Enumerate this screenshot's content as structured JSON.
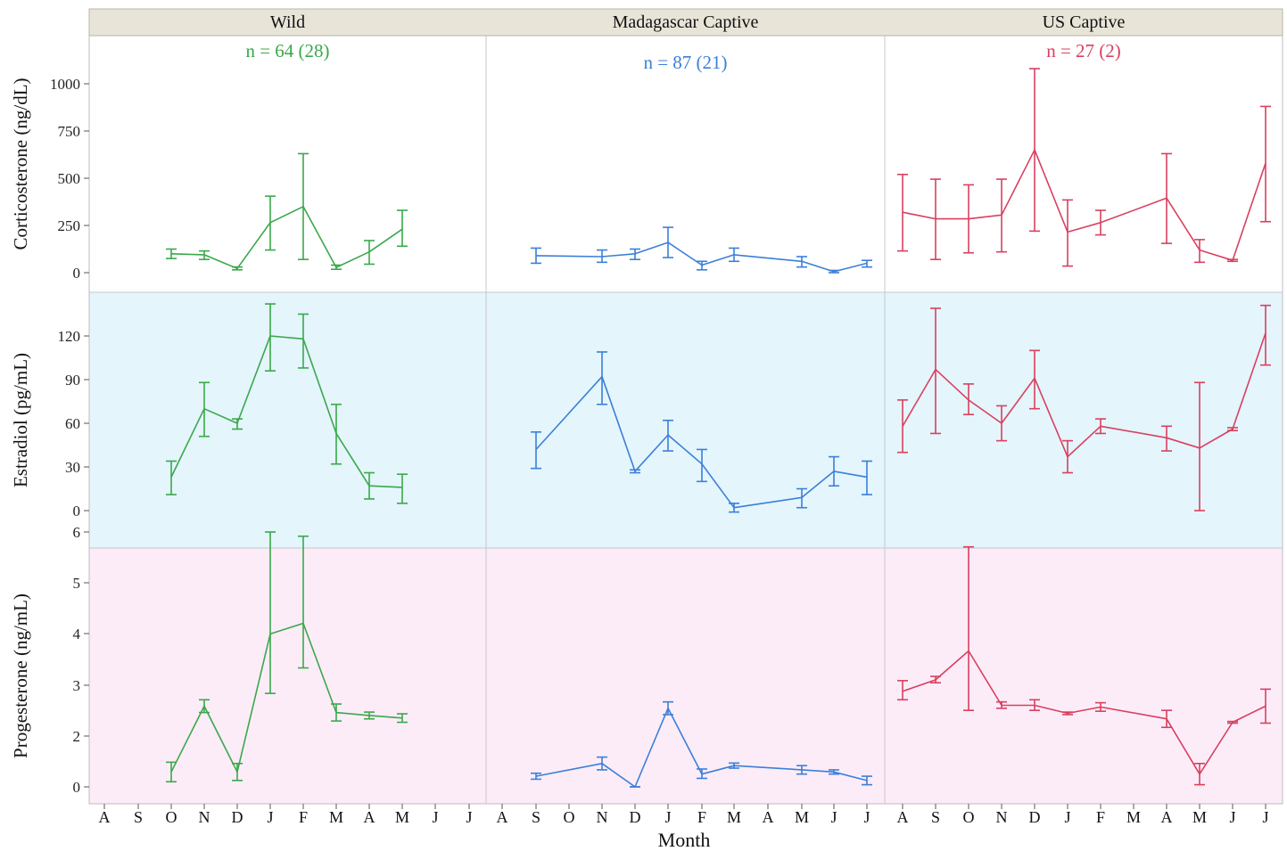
{
  "chart_data": {
    "type": "line",
    "error_bars": true,
    "grid": false,
    "columns": [
      {
        "key": "wild",
        "title": "Wild",
        "n_label": "n = 64 (28)",
        "color": "#3aa84a"
      },
      {
        "key": "mad",
        "title": "Madagascar Captive",
        "n_label": "n = 87 (21)",
        "color": "#3b7fd8"
      },
      {
        "key": "us",
        "title": "US Captive",
        "n_label": "n = 27 (2)",
        "color": "#d9405f"
      }
    ],
    "months": [
      "A",
      "S",
      "O",
      "N",
      "D",
      "J",
      "F",
      "M",
      "A",
      "M",
      "J",
      "J"
    ],
    "xlabel": "Month",
    "rows": [
      {
        "key": "cort",
        "ylabel": "Corticosterone (ng/dL)",
        "ylim": [
          -50,
          1230
        ],
        "ticks": [
          0,
          250,
          500,
          750,
          1000
        ],
        "bg": "#ffffff",
        "series": {
          "wild": [
            {
              "m": 2,
              "y": 100,
              "lo": 75,
              "hi": 125
            },
            {
              "m": 3,
              "y": 95,
              "lo": 70,
              "hi": 115
            },
            {
              "m": 4,
              "y": 22,
              "lo": 15,
              "hi": 30
            },
            {
              "m": 5,
              "y": 265,
              "lo": 120,
              "hi": 405
            },
            {
              "m": 6,
              "y": 350,
              "lo": 70,
              "hi": 630
            },
            {
              "m": 7,
              "y": 28,
              "lo": 18,
              "hi": 40
            },
            {
              "m": 8,
              "y": 110,
              "lo": 45,
              "hi": 170
            },
            {
              "m": 9,
              "y": 230,
              "lo": 140,
              "hi": 330
            }
          ],
          "mad": [
            {
              "m": 1,
              "y": 90,
              "lo": 50,
              "hi": 130
            },
            {
              "m": 3,
              "y": 85,
              "lo": 55,
              "hi": 120
            },
            {
              "m": 4,
              "y": 100,
              "lo": 70,
              "hi": 125
            },
            {
              "m": 5,
              "y": 160,
              "lo": 80,
              "hi": 240
            },
            {
              "m": 6,
              "y": 40,
              "lo": 15,
              "hi": 60
            },
            {
              "m": 7,
              "y": 95,
              "lo": 60,
              "hi": 130
            },
            {
              "m": 9,
              "y": 60,
              "lo": 30,
              "hi": 85
            },
            {
              "m": 10,
              "y": 5,
              "lo": 0,
              "hi": 12
            },
            {
              "m": 11,
              "y": 50,
              "lo": 30,
              "hi": 65
            }
          ],
          "us": [
            {
              "m": 0,
              "y": 320,
              "lo": 115,
              "hi": 520
            },
            {
              "m": 1,
              "y": 285,
              "lo": 70,
              "hi": 495
            },
            {
              "m": 2,
              "y": 285,
              "lo": 105,
              "hi": 465
            },
            {
              "m": 3,
              "y": 305,
              "lo": 110,
              "hi": 495
            },
            {
              "m": 4,
              "y": 650,
              "lo": 220,
              "hi": 1080
            },
            {
              "m": 5,
              "y": 215,
              "lo": 35,
              "hi": 385
            },
            {
              "m": 6,
              "y": 265,
              "lo": 200,
              "hi": 330
            },
            {
              "m": 8,
              "y": 395,
              "lo": 155,
              "hi": 630
            },
            {
              "m": 9,
              "y": 120,
              "lo": 55,
              "hi": 175
            },
            {
              "m": 10,
              "y": 65,
              "lo": 60,
              "hi": 70
            },
            {
              "m": 11,
              "y": 580,
              "lo": 270,
              "hi": 880
            }
          ]
        }
      },
      {
        "key": "estr",
        "ylabel": "Estradiol (pg/mL)",
        "ylim": [
          -25,
          142
        ],
        "ticks": [
          0,
          30,
          60,
          90,
          120
        ],
        "bg": "#e4f5fc",
        "series": {
          "wild": [
            {
              "m": 2,
              "y": 23,
              "lo": 11,
              "hi": 34
            },
            {
              "m": 3,
              "y": 70,
              "lo": 51,
              "hi": 88
            },
            {
              "m": 4,
              "y": 60,
              "lo": 56,
              "hi": 63
            },
            {
              "m": 5,
              "y": 120,
              "lo": 96,
              "hi": 142
            },
            {
              "m": 6,
              "y": 118,
              "lo": 98,
              "hi": 135
            },
            {
              "m": 7,
              "y": 53,
              "lo": 32,
              "hi": 73
            },
            {
              "m": 8,
              "y": 17,
              "lo": 8,
              "hi": 26
            },
            {
              "m": 9,
              "y": 16,
              "lo": 5,
              "hi": 25
            }
          ],
          "mad": [
            {
              "m": 1,
              "y": 42,
              "lo": 29,
              "hi": 54
            },
            {
              "m": 3,
              "y": 92,
              "lo": 73,
              "hi": 109
            },
            {
              "m": 4,
              "y": 27,
              "lo": 26,
              "hi": 28
            },
            {
              "m": 5,
              "y": 52,
              "lo": 41,
              "hi": 62
            },
            {
              "m": 6,
              "y": 32,
              "lo": 20,
              "hi": 42
            },
            {
              "m": 7,
              "y": 2,
              "lo": -1,
              "hi": 5
            },
            {
              "m": 9,
              "y": 9,
              "lo": 2,
              "hi": 15
            },
            {
              "m": 10,
              "y": 27,
              "lo": 17,
              "hi": 37
            },
            {
              "m": 11,
              "y": 23,
              "lo": 11,
              "hi": 34
            }
          ],
          "us": [
            {
              "m": 0,
              "y": 58,
              "lo": 40,
              "hi": 76
            },
            {
              "m": 1,
              "y": 97,
              "lo": 53,
              "hi": 139
            },
            {
              "m": 2,
              "y": 76,
              "lo": 66,
              "hi": 87
            },
            {
              "m": 3,
              "y": 60,
              "lo": 48,
              "hi": 72
            },
            {
              "m": 4,
              "y": 91,
              "lo": 70,
              "hi": 110
            },
            {
              "m": 5,
              "y": 37,
              "lo": 26,
              "hi": 48
            },
            {
              "m": 6,
              "y": 58,
              "lo": 53,
              "hi": 63
            },
            {
              "m": 8,
              "y": 50,
              "lo": 41,
              "hi": 58
            },
            {
              "m": 9,
              "y": 43,
              "lo": 0,
              "hi": 88
            },
            {
              "m": 10,
              "y": 56,
              "lo": 55,
              "hi": 57
            },
            {
              "m": 11,
              "y": 122,
              "lo": 100,
              "hi": 141
            }
          ]
        }
      },
      {
        "key": "prog",
        "ylabel": "Progesterone (ng/mL)",
        "ylim": [
          -0.3,
          6.75
        ],
        "ticks": [
          0,
          2,
          3,
          4,
          5,
          6
        ],
        "bg": "#fcecf8",
        "series": {
          "wild": [
            {
              "m": 2,
              "y": 0.35,
              "lo": 0.12,
              "hi": 0.58
            },
            {
              "m": 3,
              "y": 1.9,
              "lo": 1.75,
              "hi": 2.05
            },
            {
              "m": 4,
              "y": 0.35,
              "lo": 0.15,
              "hi": 0.55
            },
            {
              "m": 5,
              "y": 3.6,
              "lo": 2.2,
              "hi": 6.0
            },
            {
              "m": 6,
              "y": 3.85,
              "lo": 2.8,
              "hi": 5.9
            },
            {
              "m": 7,
              "y": 1.75,
              "lo": 1.55,
              "hi": 1.95
            },
            {
              "m": 8,
              "y": 1.68,
              "lo": 1.6,
              "hi": 1.76
            },
            {
              "m": 9,
              "y": 1.62,
              "lo": 1.52,
              "hi": 1.72
            }
          ],
          "mad": [
            {
              "m": 1,
              "y": 0.25,
              "lo": 0.18,
              "hi": 0.32
            },
            {
              "m": 3,
              "y": 0.55,
              "lo": 0.4,
              "hi": 0.7
            },
            {
              "m": 4,
              "y": 0.0,
              "lo": 0.0,
              "hi": 0.0
            },
            {
              "m": 5,
              "y": 1.85,
              "lo": 1.7,
              "hi": 2.0
            },
            {
              "m": 6,
              "y": 0.3,
              "lo": 0.2,
              "hi": 0.42
            },
            {
              "m": 7,
              "y": 0.5,
              "lo": 0.44,
              "hi": 0.56
            },
            {
              "m": 9,
              "y": 0.4,
              "lo": 0.3,
              "hi": 0.5
            },
            {
              "m": 10,
              "y": 0.35,
              "lo": 0.3,
              "hi": 0.4
            },
            {
              "m": 11,
              "y": 0.15,
              "lo": 0.05,
              "hi": 0.25
            }
          ],
          "us": [
            {
              "m": 0,
              "y": 2.25,
              "lo": 2.05,
              "hi": 2.5
            },
            {
              "m": 1,
              "y": 2.52,
              "lo": 2.45,
              "hi": 2.6
            },
            {
              "m": 2,
              "y": 3.2,
              "lo": 1.8,
              "hi": 5.65
            },
            {
              "m": 3,
              "y": 1.92,
              "lo": 1.85,
              "hi": 2.0
            },
            {
              "m": 4,
              "y": 1.92,
              "lo": 1.8,
              "hi": 2.05
            },
            {
              "m": 5,
              "y": 1.73,
              "lo": 1.7,
              "hi": 1.76
            },
            {
              "m": 6,
              "y": 1.88,
              "lo": 1.78,
              "hi": 1.98
            },
            {
              "m": 8,
              "y": 1.6,
              "lo": 1.4,
              "hi": 1.8
            },
            {
              "m": 9,
              "y": 0.3,
              "lo": 0.05,
              "hi": 0.55
            },
            {
              "m": 10,
              "y": 1.52,
              "lo": 1.5,
              "hi": 1.54
            },
            {
              "m": 11,
              "y": 1.9,
              "lo": 1.5,
              "hi": 2.3
            }
          ]
        }
      }
    ]
  }
}
